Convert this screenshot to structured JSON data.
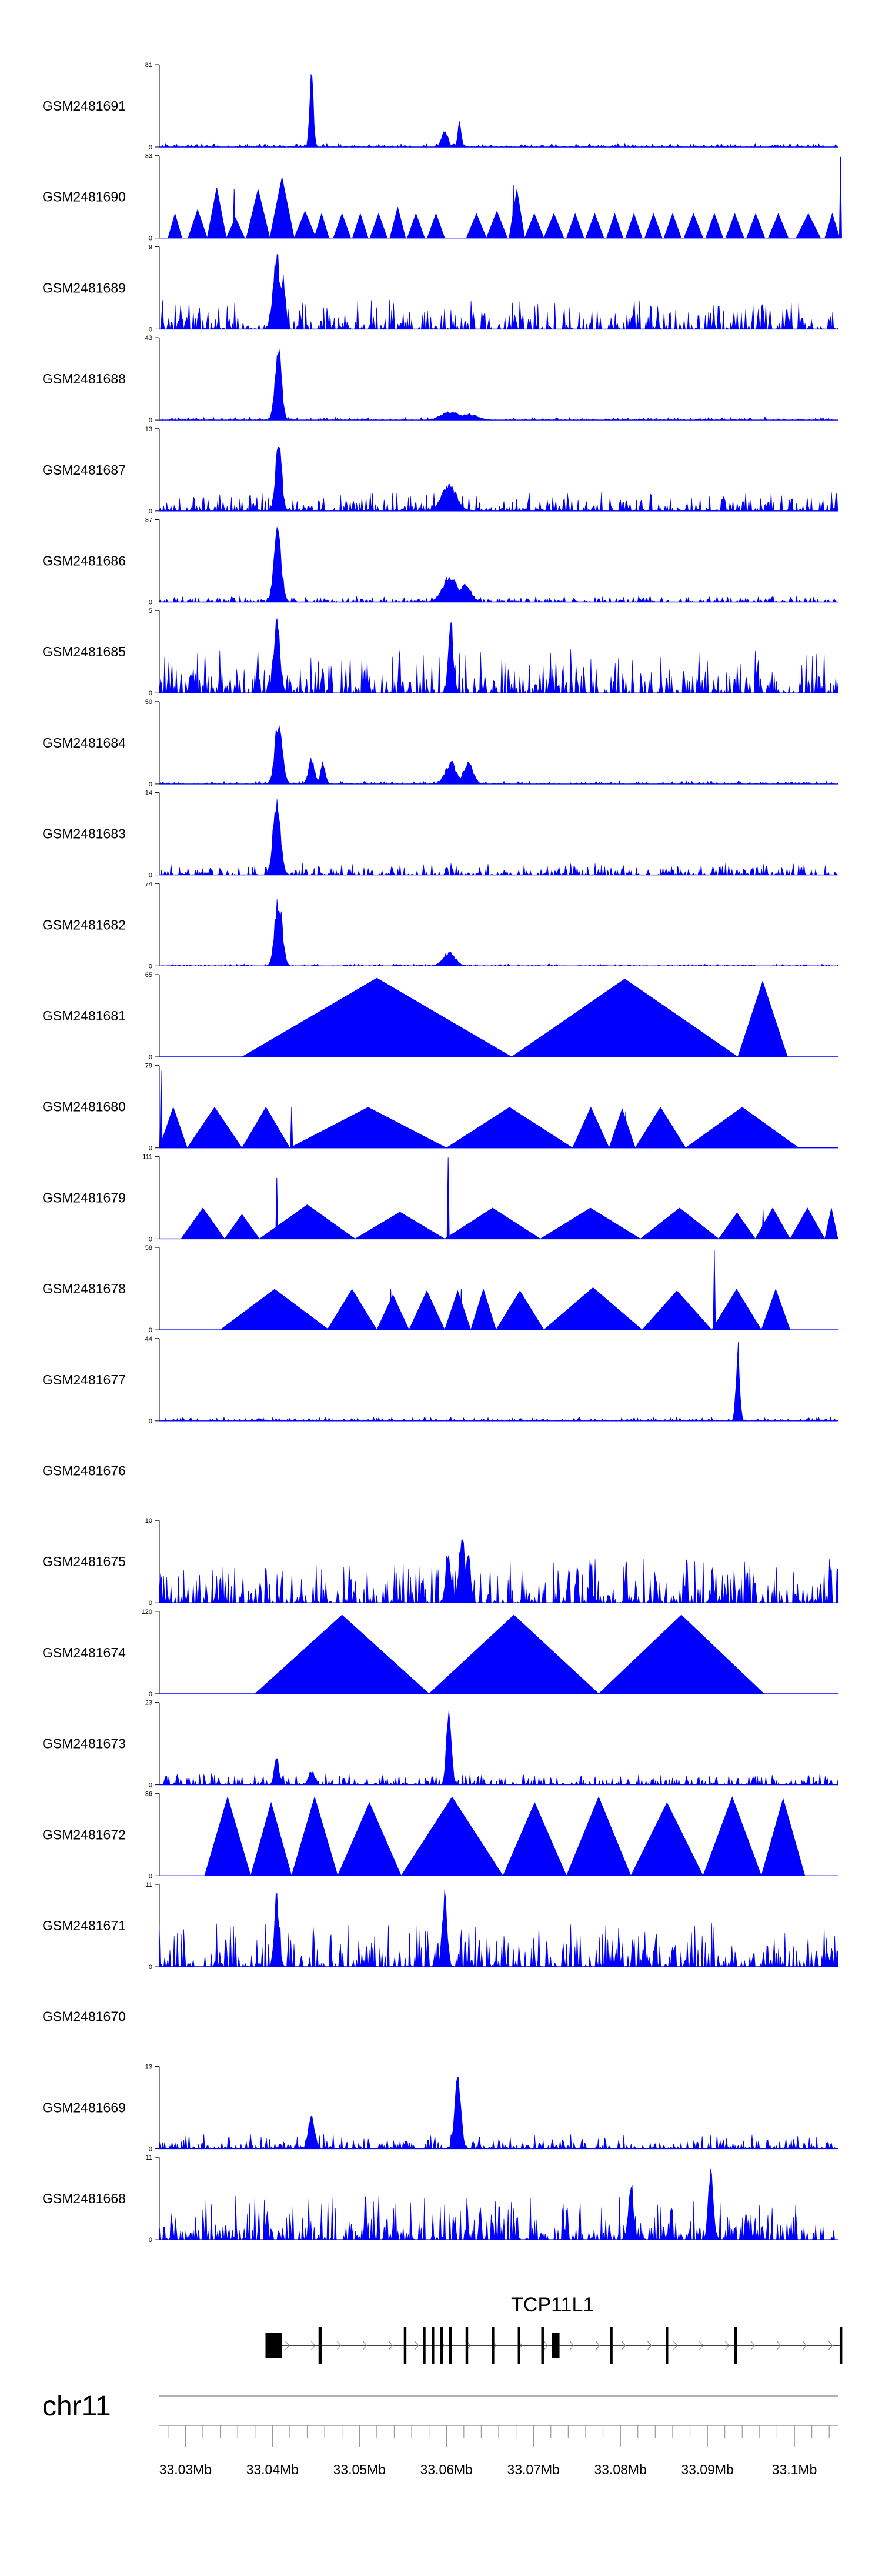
{
  "colors": {
    "signal": "#0000ff",
    "axis": "#000000",
    "gene": "#000000",
    "genome_axis": "#999999"
  },
  "chart_data": {
    "type": "area",
    "title": "",
    "xlabel": "",
    "ylabel": "",
    "xlim": [
      33.027,
      33.105
    ],
    "xunit": "Mb",
    "chromosome": "chr11",
    "x_ticks": [
      {
        "value": 33.03,
        "label": "33.03Mb"
      },
      {
        "value": 33.04,
        "label": "33.04Mb"
      },
      {
        "value": 33.05,
        "label": "33.05Mb"
      },
      {
        "value": 33.06,
        "label": "33.06Mb"
      },
      {
        "value": 33.07,
        "label": "33.07Mb"
      },
      {
        "value": 33.08,
        "label": "33.08Mb"
      },
      {
        "value": 33.09,
        "label": "33.09Mb"
      },
      {
        "value": 33.1,
        "label": "33.1Mb"
      }
    ],
    "gene": {
      "name": "TCP11L1",
      "strand": "+",
      "start": 33.0392,
      "end": 33.1055,
      "exons": [
        [
          33.0392,
          33.0411
        ],
        [
          33.0453,
          33.0457
        ],
        [
          33.0551,
          33.0554
        ],
        [
          33.0573,
          33.0576
        ],
        [
          33.0583,
          33.0586
        ],
        [
          33.0593,
          33.0596
        ],
        [
          33.0603,
          33.0606
        ],
        [
          33.0622,
          33.0625
        ],
        [
          33.0652,
          33.0655
        ],
        [
          33.0682,
          33.0685
        ],
        [
          33.0709,
          33.0712
        ],
        [
          33.0721,
          33.073
        ],
        [
          33.0788,
          33.0791
        ],
        [
          33.0852,
          33.0855
        ],
        [
          33.0931,
          33.0934
        ],
        [
          33.1052,
          33.1055
        ]
      ]
    },
    "tracks": [
      {
        "name": "GSM2481691",
        "ymax": 81,
        "mode": "noisy",
        "noise": 0.04,
        "peaks": [
          [
            33.0445,
            1.0,
            0.0003
          ],
          [
            33.0598,
            0.22,
            0.0005
          ],
          [
            33.0615,
            0.32,
            0.0003
          ]
        ]
      },
      {
        "name": "GSM2481690",
        "ymax": 33,
        "mode": "tri",
        "tris": [
          [
            33.028,
            33.0296,
            0.3
          ],
          [
            33.0303,
            33.0325,
            0.35
          ],
          [
            33.0325,
            33.0347,
            0.62
          ],
          [
            33.0347,
            33.0368,
            0.25
          ],
          [
            33.037,
            33.0397,
            0.6
          ],
          [
            33.0397,
            33.0425,
            0.75
          ],
          [
            33.0425,
            33.045,
            0.33
          ],
          [
            33.0448,
            33.0465,
            0.3
          ],
          [
            33.047,
            33.049,
            0.3
          ],
          [
            33.0492,
            33.051,
            0.3
          ],
          [
            33.0512,
            33.0532,
            0.3
          ],
          [
            33.0535,
            33.0553,
            0.38
          ],
          [
            33.0555,
            33.0575,
            0.3
          ],
          [
            33.0578,
            33.0598,
            0.3
          ],
          [
            33.0623,
            33.0646,
            0.3
          ],
          [
            33.0646,
            33.067,
            0.33
          ],
          [
            33.0672,
            33.069,
            0.6
          ],
          [
            33.069,
            33.0712,
            0.3
          ],
          [
            33.0712,
            33.0735,
            0.3
          ],
          [
            33.0738,
            33.0758,
            0.3
          ],
          [
            33.076,
            33.0781,
            0.3
          ],
          [
            33.0784,
            33.0803,
            0.3
          ],
          [
            33.0806,
            33.0825,
            0.3
          ],
          [
            33.0828,
            33.0848,
            0.3
          ],
          [
            33.085,
            33.087,
            0.3
          ],
          [
            33.0873,
            33.0895,
            0.3
          ],
          [
            33.0898,
            33.0918,
            0.3
          ],
          [
            33.0921,
            33.0942,
            0.3
          ],
          [
            33.0945,
            33.0966,
            0.3
          ],
          [
            33.097,
            33.0993,
            0.3
          ],
          [
            33.1002,
            33.103,
            0.3
          ],
          [
            33.1035,
            33.1052,
            0.3
          ]
        ],
        "spikes": [
          [
            33.1053,
            1.0
          ],
          [
            33.0356,
            0.6
          ],
          [
            33.0677,
            0.65
          ]
        ]
      },
      {
        "name": "GSM2481689",
        "ymax": 9,
        "mode": "noisy",
        "noise": 0.3,
        "peaks": [
          [
            33.0405,
            1.0,
            0.0006
          ],
          [
            33.0412,
            0.7,
            0.0004
          ]
        ]
      },
      {
        "name": "GSM2481688",
        "ymax": 43,
        "mode": "noisy",
        "noise": 0.03,
        "peaks": [
          [
            33.0407,
            0.92,
            0.0005
          ],
          [
            33.0404,
            0.6,
            0.0004
          ],
          [
            33.0605,
            0.12,
            0.0015
          ],
          [
            33.0625,
            0.08,
            0.0015
          ]
        ]
      },
      {
        "name": "GSM2481687",
        "ymax": 13,
        "mode": "noisy",
        "noise": 0.2,
        "peaks": [
          [
            33.0407,
            0.95,
            0.0005
          ],
          [
            33.0603,
            0.35,
            0.0012
          ]
        ]
      },
      {
        "name": "GSM2481686",
        "ymax": 37,
        "mode": "noisy",
        "noise": 0.06,
        "peaks": [
          [
            33.0406,
            0.95,
            0.0006
          ],
          [
            33.0604,
            0.35,
            0.0012
          ],
          [
            33.0622,
            0.25,
            0.0009
          ]
        ]
      },
      {
        "name": "GSM2481685",
        "ymax": 5,
        "mode": "noisy",
        "noise": 0.45,
        "peaks": [
          [
            33.0405,
            1.0,
            0.0005
          ],
          [
            33.0605,
            0.95,
            0.0004
          ]
        ]
      },
      {
        "name": "GSM2481684",
        "ymax": 50,
        "mode": "noisy",
        "noise": 0.03,
        "peaks": [
          [
            33.0407,
            0.85,
            0.0006
          ],
          [
            33.0445,
            0.33,
            0.0005
          ],
          [
            33.0458,
            0.3,
            0.0004
          ],
          [
            33.0605,
            0.3,
            0.0009
          ],
          [
            33.0625,
            0.28,
            0.0008
          ]
        ]
      },
      {
        "name": "GSM2481683",
        "ymax": 14,
        "mode": "noisy",
        "noise": 0.12,
        "peaks": [
          [
            33.0405,
            1.0,
            0.0006
          ]
        ]
      },
      {
        "name": "GSM2481682",
        "ymax": 74,
        "mode": "noisy",
        "noise": 0.02,
        "peaks": [
          [
            33.0407,
            0.95,
            0.0006
          ],
          [
            33.0603,
            0.18,
            0.001
          ]
        ]
      },
      {
        "name": "GSM2481681",
        "ymax": 65,
        "mode": "tri",
        "tris": [
          [
            33.0365,
            33.0675,
            0.97
          ],
          [
            33.0675,
            33.0935,
            0.96
          ],
          [
            33.0935,
            33.0992,
            0.93
          ]
        ],
        "spikes": []
      },
      {
        "name": "GSM2481680",
        "ymax": 79,
        "mode": "tri",
        "tris": [
          [
            33.027,
            33.0302,
            0.5
          ],
          [
            33.0302,
            33.0365,
            0.5
          ],
          [
            33.0365,
            33.042,
            0.5
          ],
          [
            33.042,
            33.06,
            0.5
          ],
          [
            33.06,
            33.0745,
            0.5
          ],
          [
            33.0745,
            33.0787,
            0.5
          ],
          [
            33.0787,
            33.0817,
            0.48
          ],
          [
            33.0817,
            33.0875,
            0.5
          ],
          [
            33.0875,
            33.1005,
            0.5
          ]
        ],
        "spikes": [
          [
            33.0272,
            0.95
          ],
          [
            33.0422,
            0.5
          ],
          [
            33.0806,
            0.45
          ]
        ]
      },
      {
        "name": "GSM2481679",
        "ymax": 111,
        "mode": "tri",
        "tris": [
          [
            33.0295,
            33.0345,
            0.38
          ],
          [
            33.0345,
            33.0385,
            0.3
          ],
          [
            33.0385,
            33.0495,
            0.42
          ],
          [
            33.0495,
            33.0598,
            0.33
          ],
          [
            33.0598,
            33.0708,
            0.38
          ],
          [
            33.0708,
            33.0823,
            0.38
          ],
          [
            33.0823,
            33.0913,
            0.38
          ],
          [
            33.0913,
            33.0955,
            0.32
          ],
          [
            33.0955,
            33.0995,
            0.38
          ],
          [
            33.0995,
            33.1035,
            0.38
          ],
          [
            33.1035,
            33.105,
            0.38
          ]
        ],
        "spikes": [
          [
            33.0405,
            0.75
          ],
          [
            33.0602,
            1.0
          ],
          [
            33.0964,
            0.35
          ]
        ]
      },
      {
        "name": "GSM2481678",
        "ymax": 58,
        "mode": "tri",
        "tris": [
          [
            33.034,
            33.0465,
            0.5
          ],
          [
            33.0463,
            33.052,
            0.5
          ],
          [
            33.052,
            33.0557,
            0.43
          ],
          [
            33.0557,
            33.0598,
            0.48
          ],
          [
            33.0598,
            33.0628,
            0.48
          ],
          [
            33.0628,
            33.0657,
            0.5
          ],
          [
            33.0657,
            33.0712,
            0.48
          ],
          [
            33.0712,
            33.0825,
            0.52
          ],
          [
            33.0825,
            33.0905,
            0.48
          ],
          [
            33.0905,
            33.0962,
            0.5
          ],
          [
            33.0962,
            33.0995,
            0.5
          ]
        ],
        "spikes": [
          [
            33.0908,
            0.98
          ],
          [
            33.0536,
            0.5
          ],
          [
            33.0617,
            0.5
          ]
        ]
      },
      {
        "name": "GSM2481677",
        "ymax": 44,
        "mode": "noisy",
        "noise": 0.04,
        "peaks": [
          [
            33.0935,
            1.0,
            0.0003
          ]
        ]
      },
      {
        "name": "GSM2481676",
        "ymax": null,
        "mode": "empty"
      },
      {
        "name": "GSM2481675",
        "ymax": 10,
        "mode": "noisy",
        "noise": 0.45,
        "peaks": [
          [
            33.0618,
            0.95,
            0.0005
          ],
          [
            33.0602,
            0.7,
            0.0004
          ],
          [
            33.0625,
            0.7,
            0.0004
          ]
        ]
      },
      {
        "name": "GSM2481674",
        "ymax": 120,
        "mode": "tri",
        "tris": [
          [
            33.038,
            33.058,
            0.97
          ],
          [
            33.058,
            33.0775,
            0.97
          ],
          [
            33.0775,
            33.0965,
            0.97
          ]
        ],
        "spikes": []
      },
      {
        "name": "GSM2481673",
        "ymax": 23,
        "mode": "noisy",
        "noise": 0.12,
        "peaks": [
          [
            33.0603,
            1.0,
            0.0004
          ],
          [
            33.0405,
            0.35,
            0.0004
          ],
          [
            33.0445,
            0.2,
            0.0005
          ]
        ]
      },
      {
        "name": "GSM2481672",
        "ymax": 36,
        "mode": "tri",
        "tris": [
          [
            33.0322,
            33.0375,
            0.97
          ],
          [
            33.0375,
            33.0422,
            0.9
          ],
          [
            33.0422,
            33.0475,
            0.97
          ],
          [
            33.0475,
            33.0548,
            0.9
          ],
          [
            33.0548,
            33.0665,
            0.97
          ],
          [
            33.0665,
            33.0738,
            0.9
          ],
          [
            33.0738,
            33.0812,
            0.97
          ],
          [
            33.0812,
            33.0895,
            0.9
          ],
          [
            33.0895,
            33.0962,
            0.97
          ],
          [
            33.0962,
            33.1012,
            0.95
          ]
        ],
        "spikes": []
      },
      {
        "name": "GSM2481671",
        "ymax": 11,
        "mode": "noisy",
        "noise": 0.45,
        "peaks": [
          [
            33.0405,
            1.0,
            0.0004
          ],
          [
            33.0598,
            0.95,
            0.0004
          ]
        ]
      },
      {
        "name": "GSM2481670",
        "ymax": null,
        "mode": "empty"
      },
      {
        "name": "GSM2481669",
        "ymax": 13,
        "mode": "noisy",
        "noise": 0.15,
        "peaks": [
          [
            33.0613,
            1.0,
            0.0005
          ],
          [
            33.0445,
            0.45,
            0.0005
          ]
        ]
      },
      {
        "name": "GSM2481668",
        "ymax": 11,
        "mode": "noisy",
        "noise": 0.45,
        "peaks": [
          [
            33.0904,
            1.0,
            0.0004
          ],
          [
            33.0812,
            0.8,
            0.0004
          ]
        ]
      }
    ]
  }
}
